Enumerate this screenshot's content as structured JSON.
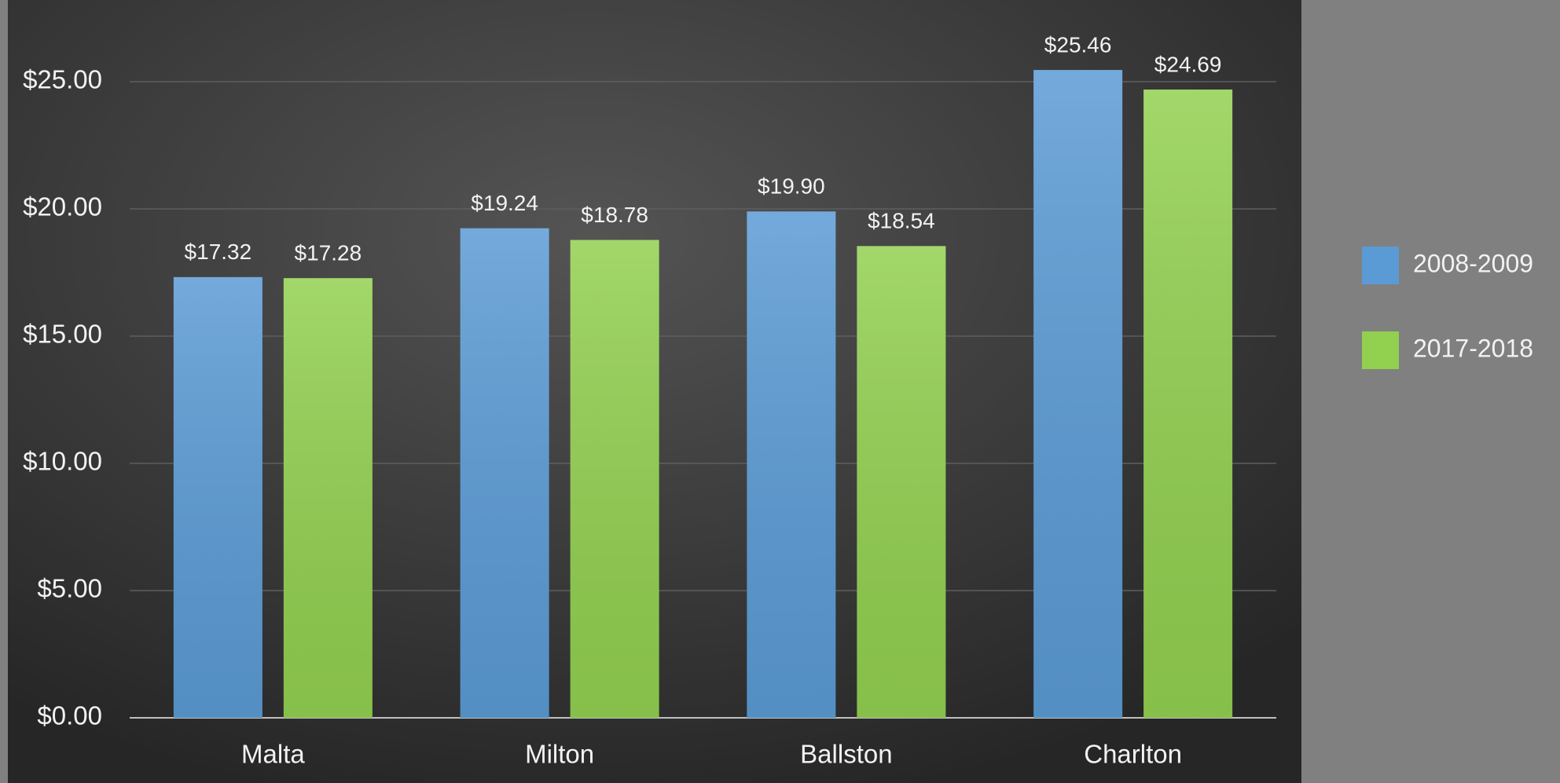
{
  "chart_data": {
    "type": "bar",
    "categories": [
      "Malta",
      "Milton",
      "Ballston",
      "Charlton"
    ],
    "series": [
      {
        "name": "2008-2009",
        "color": "#5b9bd5",
        "values": [
          17.32,
          19.24,
          19.9,
          25.46
        ],
        "value_labels": [
          "$17.32",
          "$19.24",
          "$19.90",
          "$25.46"
        ]
      },
      {
        "name": "2017-2018",
        "color": "#92d050",
        "values": [
          17.28,
          18.78,
          18.54,
          24.69
        ],
        "value_labels": [
          "$17.28",
          "$18.78",
          "$18.54",
          "$24.69"
        ]
      }
    ],
    "ylim": [
      0,
      27.5
    ],
    "yticks": [
      {
        "value": 0,
        "label": "$0.00"
      },
      {
        "value": 5,
        "label": "$5.00"
      },
      {
        "value": 10,
        "label": "$10.00"
      },
      {
        "value": 15,
        "label": "$15.00"
      },
      {
        "value": 20,
        "label": "$20.00"
      },
      {
        "value": 25,
        "label": "$25.00"
      }
    ],
    "grid": true,
    "legend": "right"
  }
}
